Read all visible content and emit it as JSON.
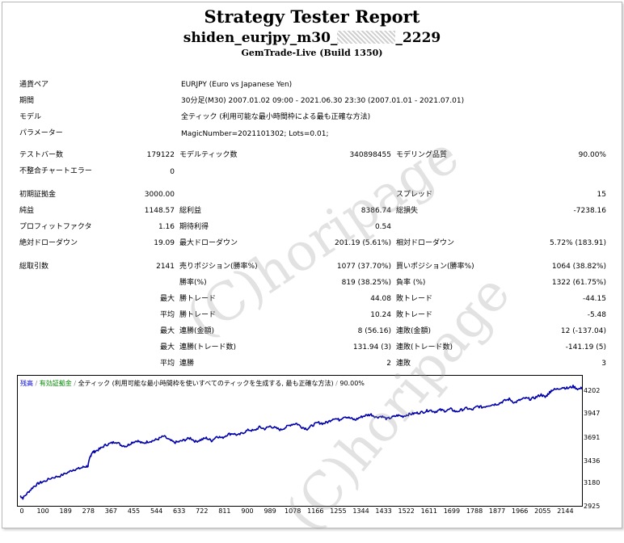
{
  "report": {
    "title": "Strategy Tester Report",
    "name_prefix": "shiden_eurjpy_m30_",
    "name_suffix": "_2229",
    "build": "GemTrade-Live (Build 1350)"
  },
  "watermark": "(C)horipage",
  "info": [
    {
      "label": "通貨ペア",
      "value": "EURJPY (Euro vs Japanese Yen)"
    },
    {
      "label": "期間",
      "value": "30分足(M30) 2007.01.02 09:00 - 2021.06.30 23:30 (2007.01.01 - 2021.07.01)"
    },
    {
      "label": "モデル",
      "value": "全ティック (利用可能な最小時間枠による最も正確な方法)"
    },
    {
      "label": "パラメーター",
      "value": "MagicNumber=2021101302; Lots=0.01;"
    }
  ],
  "stats": {
    "bars_label": "テストバー数",
    "bars": "179122",
    "ticks_label": "モデルティック数",
    "ticks": "340898455",
    "quality_label": "モデリング品質",
    "quality": "90.00%",
    "mismatch_label": "不整合チャートエラー",
    "mismatch": "0",
    "deposit_label": "初期証拠金",
    "deposit": "3000.00",
    "spread_label": "スプレッド",
    "spread": "15",
    "net_label": "純益",
    "net": "1148.57",
    "gross_profit_label": "総利益",
    "gross_profit": "8386.74",
    "gross_loss_label": "総損失",
    "gross_loss": "-7238.16",
    "pf_label": "プロフィットファクタ",
    "pf": "1.16",
    "expected_label": "期待利得",
    "expected": "0.54",
    "abs_dd_label": "絶対ドローダウン",
    "abs_dd": "19.09",
    "max_dd_label": "最大ドローダウン",
    "max_dd": "201.19 (5.61%)",
    "rel_dd_label": "相対ドローダウン",
    "rel_dd": "5.72% (183.91)",
    "trades_label": "総取引数",
    "trades": "2141",
    "short_label": "売りポジション(勝率%)",
    "short": "1077 (37.70%)",
    "long_label": "買いポジション(勝率%)",
    "long": "1064 (38.82%)",
    "win_rate_label": "勝率(%)",
    "win_rate": "819 (38.25%)",
    "loss_rate_label": "負率 (%)",
    "loss_rate": "1322 (61.75%)",
    "max_prefix": "最大",
    "avg_prefix": "平均",
    "largest_win_label": "勝トレード",
    "largest_win": "44.08",
    "largest_loss_label": "敗トレード",
    "largest_loss": "-44.15",
    "avg_win_label": "勝トレード",
    "avg_win": "10.24",
    "avg_loss_label": "敗トレード",
    "avg_loss": "-5.48",
    "max_consec_wins_label": "連勝(金額)",
    "max_consec_wins": "8 (56.16)",
    "max_consec_losses_label": "連敗(金額)",
    "max_consec_losses": "12 (-137.04)",
    "max_consec_profit_label": "連勝(トレード数)",
    "max_consec_profit": "131.94 (3)",
    "max_consec_loss_label": "連敗(トレード数)",
    "max_consec_loss": "-141.19 (5)",
    "avg_consec_wins_label": "連勝",
    "avg_consec_wins": "2",
    "avg_consec_losses_label": "連敗",
    "avg_consec_losses": "3"
  },
  "chart_legend": {
    "balance": "残高",
    "equity": "有効証拠金",
    "model": "全ティック (利用可能な最小時間枠を使いすべてのティックを生成する, 最も正確な方法)",
    "quality": "90.00%"
  },
  "chart_data": {
    "type": "line",
    "title": "",
    "xlabel": "",
    "ylabel": "",
    "xlim": [
      0,
      2200
    ],
    "ylim": [
      2925,
      4275
    ],
    "x_ticks": [
      "0",
      "100",
      "189",
      "278",
      "367",
      "455",
      "544",
      "633",
      "722",
      "811",
      "900",
      "989",
      "1078",
      "1166",
      "1255",
      "1344",
      "1433",
      "1522",
      "1611",
      "1699",
      "1788",
      "1877",
      "1966",
      "2055",
      "2144"
    ],
    "y_ticks": [
      "4202",
      "3947",
      "3691",
      "3436",
      "3180",
      "2925"
    ],
    "grid": false,
    "series": [
      {
        "color": "#0000aa",
        "x": [
          0,
          10,
          30,
          50,
          70,
          90,
          120,
          150,
          180,
          200,
          220,
          240,
          255,
          262,
          270,
          280,
          300,
          320,
          340,
          360,
          380,
          400,
          420,
          440,
          460,
          480,
          500,
          520,
          540,
          560,
          580,
          600,
          620,
          640,
          660,
          680,
          700,
          720,
          740,
          760,
          780,
          800,
          820,
          840,
          860,
          880,
          900,
          920,
          940,
          960,
          980,
          1000,
          1020,
          1040,
          1060,
          1080,
          1100,
          1120,
          1140,
          1160,
          1180,
          1200,
          1220,
          1240,
          1260,
          1280,
          1300,
          1320,
          1340,
          1360,
          1380,
          1400,
          1420,
          1440,
          1460,
          1480,
          1500,
          1520,
          1540,
          1560,
          1580,
          1600,
          1620,
          1640,
          1660,
          1680,
          1700,
          1720,
          1740,
          1760,
          1780,
          1800,
          1820,
          1840,
          1860,
          1880,
          1900,
          1920,
          1940,
          1960,
          1975,
          1990,
          2000,
          2020,
          2040,
          2060,
          2080,
          2100,
          2120,
          2140,
          2150
        ],
        "y": [
          3000,
          2975,
          3040,
          3100,
          3140,
          3160,
          3200,
          3220,
          3260,
          3290,
          3300,
          3320,
          3330,
          3420,
          3480,
          3490,
          3520,
          3560,
          3580,
          3600,
          3560,
          3550,
          3590,
          3610,
          3580,
          3600,
          3610,
          3630,
          3660,
          3620,
          3590,
          3600,
          3620,
          3640,
          3600,
          3620,
          3640,
          3610,
          3660,
          3640,
          3680,
          3690,
          3670,
          3700,
          3730,
          3720,
          3760,
          3740,
          3770,
          3750,
          3730,
          3760,
          3790,
          3800,
          3760,
          3740,
          3780,
          3810,
          3800,
          3820,
          3860,
          3840,
          3880,
          3860,
          3840,
          3870,
          3890,
          3900,
          3870,
          3880,
          3850,
          3870,
          3890,
          3880,
          3900,
          3910,
          3920,
          3930,
          3950,
          3930,
          3950,
          3940,
          3960,
          3930,
          3950,
          3970,
          3950,
          3990,
          3980,
          4000,
          4010,
          4020,
          4050,
          4070,
          4030,
          4060,
          4080,
          4070,
          4090,
          4120,
          4090,
          4140,
          4170,
          4180,
          4200,
          4190,
          4210,
          4180,
          4200,
          4170,
          4160
        ]
      }
    ]
  }
}
